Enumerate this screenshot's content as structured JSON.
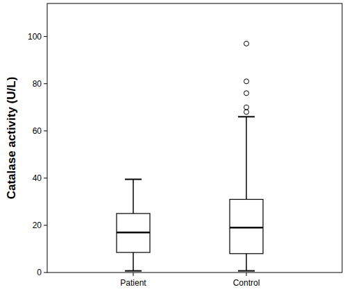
{
  "chart_data": {
    "type": "box",
    "ylabel": "Catalase activity (U/L)",
    "categories": [
      "Patient",
      "Control"
    ],
    "boxes": [
      {
        "min": 0.7,
        "q1": 8.5,
        "median": 17,
        "q3": 25,
        "max": 39.5,
        "outliers": []
      },
      {
        "min": 0.7,
        "q1": 8,
        "median": 19,
        "q3": 31,
        "max": 66,
        "outliers": [
          97,
          81,
          76,
          70,
          68
        ]
      }
    ],
    "ylim": [
      0,
      114
    ],
    "yticks": [
      0,
      20,
      40,
      60,
      80,
      100
    ],
    "grid": false
  }
}
